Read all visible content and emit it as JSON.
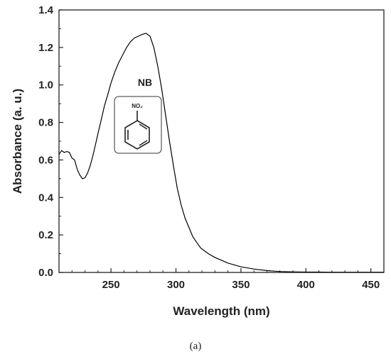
{
  "chart_data": {
    "type": "line",
    "xlabel": "Wavelength (nm)",
    "ylabel": "Absorbance (a. u.)",
    "xlim": [
      210,
      460
    ],
    "ylim": [
      0.0,
      1.4
    ],
    "x_ticks": [
      250,
      300,
      350,
      400,
      450
    ],
    "y_ticks": [
      0.0,
      0.2,
      0.4,
      0.6,
      0.8,
      1.0,
      1.2,
      1.4
    ],
    "x_tick_labels": [
      "250",
      "300",
      "350",
      "400",
      "450"
    ],
    "y_tick_labels": [
      "0.0",
      "0.2",
      "0.4",
      "0.6",
      "0.8",
      "1.0",
      "1.2",
      "1.4"
    ],
    "grid": false,
    "series": [
      {
        "x": [
          210,
          212,
          214,
          216,
          218,
          220,
          222,
          224,
          226,
          228,
          230,
          232,
          234,
          236,
          238,
          240,
          242,
          245,
          248,
          250,
          253,
          256,
          259,
          262,
          265,
          268,
          271,
          274,
          277,
          280,
          283,
          286,
          289,
          292,
          295,
          298,
          301,
          304,
          307,
          310,
          313,
          316,
          319,
          322,
          325,
          330,
          335,
          340,
          345,
          350,
          360,
          370,
          380,
          390,
          400,
          410,
          420,
          430,
          440,
          450,
          460
        ],
        "y": [
          0.63,
          0.65,
          0.64,
          0.645,
          0.64,
          0.61,
          0.6,
          0.55,
          0.52,
          0.5,
          0.505,
          0.53,
          0.57,
          0.62,
          0.68,
          0.74,
          0.8,
          0.89,
          0.96,
          1.01,
          1.07,
          1.12,
          1.16,
          1.2,
          1.23,
          1.25,
          1.26,
          1.27,
          1.275,
          1.26,
          1.2,
          1.1,
          0.98,
          0.84,
          0.7,
          0.57,
          0.45,
          0.36,
          0.29,
          0.24,
          0.19,
          0.16,
          0.13,
          0.115,
          0.1,
          0.08,
          0.065,
          0.05,
          0.04,
          0.03,
          0.018,
          0.01,
          0.005,
          0.003,
          0.002,
          0.002,
          0.001,
          0.001,
          0.001,
          0.001,
          0.001
        ],
        "color": "#000000"
      }
    ],
    "annotations": [
      {
        "text": "NB"
      },
      {
        "text": "NO₂"
      }
    ]
  },
  "caption": "(a)"
}
